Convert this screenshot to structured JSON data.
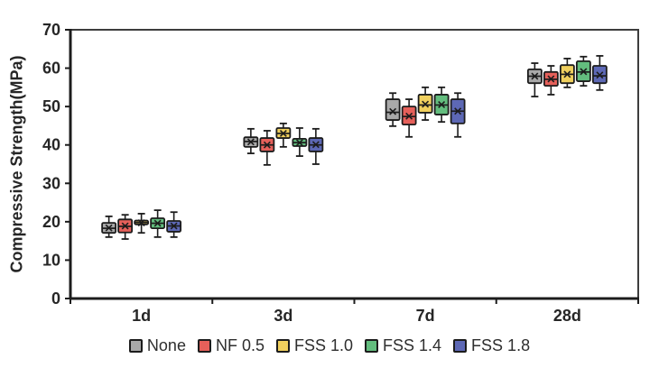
{
  "chart_data": {
    "type": "boxplot",
    "title": "",
    "xlabel": "",
    "ylabel": "Compressive Strength(MPa)",
    "ylim": [
      0,
      70
    ],
    "yticks": [
      0,
      10,
      20,
      30,
      40,
      50,
      60,
      70
    ],
    "categories": [
      "1d",
      "3d",
      "7d",
      "28d"
    ],
    "grid": false,
    "legend_position": "bottom",
    "box_outline_color": "#1c1c1c",
    "axis_color": "#1c1c1c",
    "frame_color": "#3d3d3d",
    "stats_format": [
      "whisker_low",
      "q1",
      "median",
      "q3",
      "whisker_high",
      "mean"
    ],
    "series": [
      {
        "name": "None",
        "color": "#a9a9a9",
        "stats": [
          [
            16.0,
            17.1,
            18.3,
            19.7,
            21.4,
            18.4
          ],
          [
            37.8,
            39.5,
            40.9,
            42.0,
            44.2,
            40.8
          ],
          [
            44.9,
            46.5,
            48.5,
            51.9,
            53.5,
            48.7
          ],
          [
            52.6,
            56.1,
            57.9,
            59.7,
            61.3,
            57.9
          ]
        ]
      },
      {
        "name": "NF 0.5",
        "color": "#e6605a",
        "stats": [
          [
            15.5,
            17.2,
            18.8,
            20.6,
            21.8,
            18.9
          ],
          [
            34.8,
            38.3,
            40.0,
            41.8,
            43.7,
            40.0
          ],
          [
            42.1,
            45.3,
            47.4,
            50.0,
            51.9,
            47.5
          ],
          [
            53.1,
            55.4,
            57.1,
            59.0,
            60.6,
            57.2
          ]
        ]
      },
      {
        "name": "FSS 1.0",
        "color": "#f0d05e",
        "stats": [
          [
            17.1,
            19.3,
            19.8,
            20.3,
            22.1,
            19.7
          ],
          [
            39.5,
            41.8,
            43.0,
            44.4,
            45.6,
            43.0
          ],
          [
            46.5,
            48.4,
            50.4,
            53.1,
            55.0,
            50.6
          ],
          [
            55.0,
            56.1,
            58.4,
            60.8,
            62.5,
            58.4
          ]
        ]
      },
      {
        "name": "FSS 1.4",
        "color": "#63bd7e",
        "stats": [
          [
            16.0,
            18.3,
            19.6,
            20.9,
            23.0,
            19.6
          ],
          [
            37.1,
            39.7,
            40.6,
            41.6,
            44.4,
            40.6
          ],
          [
            46.0,
            47.9,
            50.4,
            53.1,
            55.0,
            50.5
          ],
          [
            55.4,
            56.6,
            59.0,
            61.8,
            63.0,
            59.1
          ]
        ]
      },
      {
        "name": "FSS 1.8",
        "color": "#5d68b5",
        "stats": [
          [
            16.0,
            17.4,
            18.9,
            20.2,
            22.5,
            18.9
          ],
          [
            35.0,
            38.3,
            40.0,
            41.8,
            44.2,
            40.1
          ],
          [
            42.1,
            45.6,
            48.8,
            51.9,
            53.5,
            48.8
          ],
          [
            54.3,
            56.1,
            58.0,
            60.6,
            63.2,
            58.2
          ]
        ]
      }
    ]
  }
}
